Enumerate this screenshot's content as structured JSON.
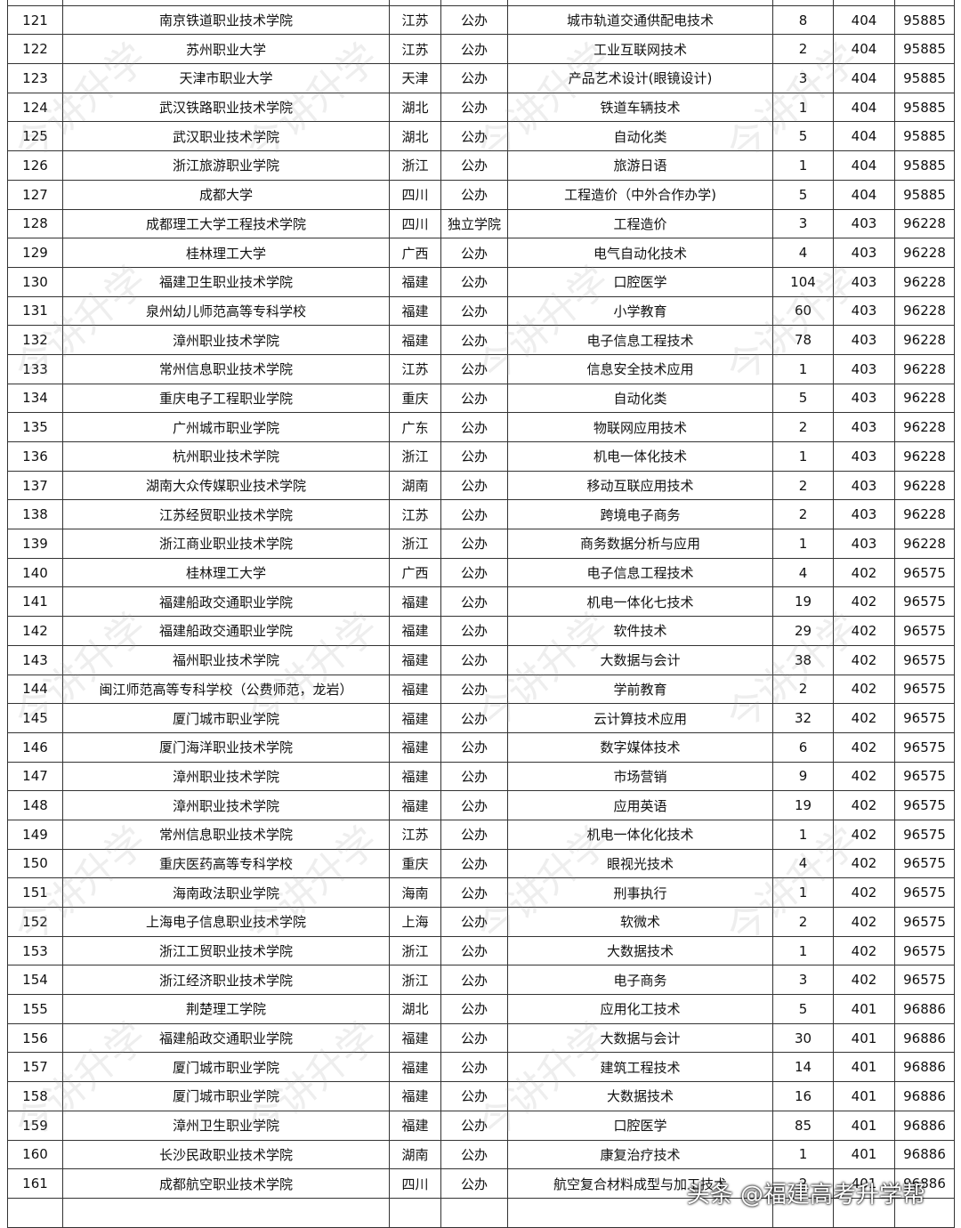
{
  "watermark": "今讲升学",
  "footer": "头条 @福建高考升学帮",
  "rows": [
    [
      "121",
      "南京铁道职业技术学院",
      "江苏",
      "公办",
      "城市轨道交通供配电技术",
      "8",
      "404",
      "95885"
    ],
    [
      "122",
      "苏州职业大学",
      "江苏",
      "公办",
      "工业互联网技术",
      "2",
      "404",
      "95885"
    ],
    [
      "123",
      "天津市职业大学",
      "天津",
      "公办",
      "产品艺术设计(眼镜设计)",
      "3",
      "404",
      "95885"
    ],
    [
      "124",
      "武汉铁路职业技术学院",
      "湖北",
      "公办",
      "铁道车辆技术",
      "1",
      "404",
      "95885"
    ],
    [
      "125",
      "武汉职业技术学院",
      "湖北",
      "公办",
      "自动化类",
      "5",
      "404",
      "95885"
    ],
    [
      "126",
      "浙江旅游职业学院",
      "浙江",
      "公办",
      "旅游日语",
      "1",
      "404",
      "95885"
    ],
    [
      "127",
      "成都大学",
      "四川",
      "公办",
      "工程造价（中外合作办学)",
      "5",
      "404",
      "95885"
    ],
    [
      "128",
      "成都理工大学工程技术学院",
      "四川",
      "独立学院",
      "工程造价",
      "3",
      "403",
      "96228"
    ],
    [
      "129",
      "桂林理工大学",
      "广西",
      "公办",
      "电气自动化技术",
      "4",
      "403",
      "96228"
    ],
    [
      "130",
      "福建卫生职业技术学院",
      "福建",
      "公办",
      "口腔医学",
      "104",
      "403",
      "96228"
    ],
    [
      "131",
      "泉州幼儿师范高等专科学校",
      "福建",
      "公办",
      "小学教育",
      "60",
      "403",
      "96228"
    ],
    [
      "132",
      "漳州职业技术学院",
      "福建",
      "公办",
      "电子信息工程技术",
      "78",
      "403",
      "96228"
    ],
    [
      "133",
      "常州信息职业技术学院",
      "江苏",
      "公办",
      "信息安全技术应用",
      "1",
      "403",
      "96228"
    ],
    [
      "134",
      "重庆电子工程职业学院",
      "重庆",
      "公办",
      "自动化类",
      "5",
      "403",
      "96228"
    ],
    [
      "135",
      "广州城市职业学院",
      "广东",
      "公办",
      "物联网应用技术",
      "2",
      "403",
      "96228"
    ],
    [
      "136",
      "杭州职业技术学院",
      "浙江",
      "公办",
      "机电一体化技术",
      "1",
      "403",
      "96228"
    ],
    [
      "137",
      "湖南大众传媒职业技术学院",
      "湖南",
      "公办",
      "移动互联应用技术",
      "2",
      "403",
      "96228"
    ],
    [
      "138",
      "江苏经贸职业技术学院",
      "江苏",
      "公办",
      "跨境电子商务",
      "2",
      "403",
      "96228"
    ],
    [
      "139",
      "浙江商业职业技术学院",
      "浙江",
      "公办",
      "商务数据分析与应用",
      "1",
      "403",
      "96228"
    ],
    [
      "140",
      "桂林理工大学",
      "广西",
      "公办",
      "电子信息工程技术",
      "4",
      "402",
      "96575"
    ],
    [
      "141",
      "福建船政交通职业学院",
      "福建",
      "公办",
      "机电一体化七技术",
      "19",
      "402",
      "96575"
    ],
    [
      "142",
      "福建船政交通职业学院",
      "福建",
      "公办",
      "软件技术",
      "29",
      "402",
      "96575"
    ],
    [
      "143",
      "福州职业技术学院",
      "福建",
      "公办",
      "大数据与会计",
      "38",
      "402",
      "96575"
    ],
    [
      "144",
      "闽江师范高等专科学校（公费师范，龙岩）",
      "福建",
      "公办",
      "学前教育",
      "2",
      "402",
      "96575"
    ],
    [
      "145",
      "厦门城市职业学院",
      "福建",
      "公办",
      "云计算技术应用",
      "32",
      "402",
      "96575"
    ],
    [
      "146",
      "厦门海洋职业技术学院",
      "福建",
      "公办",
      "数字媒体技术",
      "6",
      "402",
      "96575"
    ],
    [
      "147",
      "漳州职业技术学院",
      "福建",
      "公办",
      "市场营销",
      "9",
      "402",
      "96575"
    ],
    [
      "148",
      "漳州职业技术学院",
      "福建",
      "公办",
      "应用英语",
      "19",
      "402",
      "96575"
    ],
    [
      "149",
      "常州信息职业技术学院",
      "江苏",
      "公办",
      "机电一体化化技术",
      "1",
      "402",
      "96575"
    ],
    [
      "150",
      "重庆医药高等专科学校",
      "重庆",
      "公办",
      "眼视光技术",
      "4",
      "402",
      "96575"
    ],
    [
      "151",
      "海南政法职业学院",
      "海南",
      "公办",
      "刑事执行",
      "1",
      "402",
      "96575"
    ],
    [
      "152",
      "上海电子信息职业技术学院",
      "上海",
      "公办",
      "软微术",
      "2",
      "402",
      "96575"
    ],
    [
      "153",
      "浙江工贸职业技术学院",
      "浙江",
      "公办",
      "大数据技术",
      "1",
      "402",
      "96575"
    ],
    [
      "154",
      "浙江经济职业技术学院",
      "浙江",
      "公办",
      "电子商务",
      "3",
      "402",
      "96575"
    ],
    [
      "155",
      "荆楚理工学院",
      "湖北",
      "公办",
      "应用化工技术",
      "5",
      "401",
      "96886"
    ],
    [
      "156",
      "福建船政交通职业学院",
      "福建",
      "公办",
      "大数据与会计",
      "30",
      "401",
      "96886"
    ],
    [
      "157",
      "厦门城市职业学院",
      "福建",
      "公办",
      "建筑工程技术",
      "14",
      "401",
      "96886"
    ],
    [
      "158",
      "厦门城市职业学院",
      "福建",
      "公办",
      "大数据技术",
      "16",
      "401",
      "96886"
    ],
    [
      "159",
      "漳州卫生职业学院",
      "福建",
      "公办",
      "口腔医学",
      "85",
      "401",
      "96886"
    ],
    [
      "160",
      "长沙民政职业技术学院",
      "湖南",
      "公办",
      "康复治疗技术",
      "1",
      "401",
      "96886"
    ],
    [
      "161",
      "成都航空职业技术学院",
      "四川",
      "公办",
      "航空复合材料成型与加工技术",
      "2",
      "401",
      "96886"
    ]
  ]
}
